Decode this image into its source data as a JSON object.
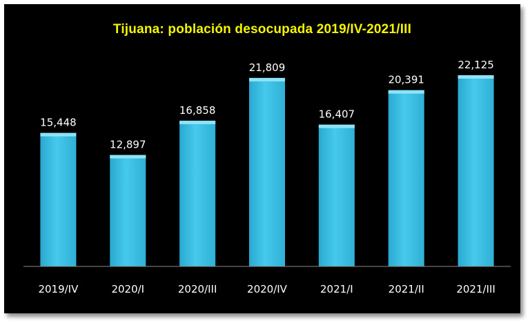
{
  "chart_data": {
    "type": "bar",
    "title": "Tijuana: población desocupada 2019/IV-2021/III",
    "categories": [
      "2019/IV",
      "2020/I",
      "2020/III",
      "2020/IV",
      "2021/I",
      "2021/II",
      "2021/III"
    ],
    "values": [
      15448,
      12897,
      16858,
      21809,
      16407,
      20391,
      22125
    ],
    "value_labels": [
      "15,448",
      "12,897",
      "16,858",
      "21,809",
      "16,407",
      "20,391",
      "22,125"
    ],
    "ylim": [
      0,
      23000
    ],
    "grid": false,
    "legend": "none",
    "colors": {
      "background": "#000000",
      "title": "#f5f500",
      "bar": "#3cc3e8",
      "bar_top": "#8fe3f7",
      "text": "#ffffff"
    }
  }
}
